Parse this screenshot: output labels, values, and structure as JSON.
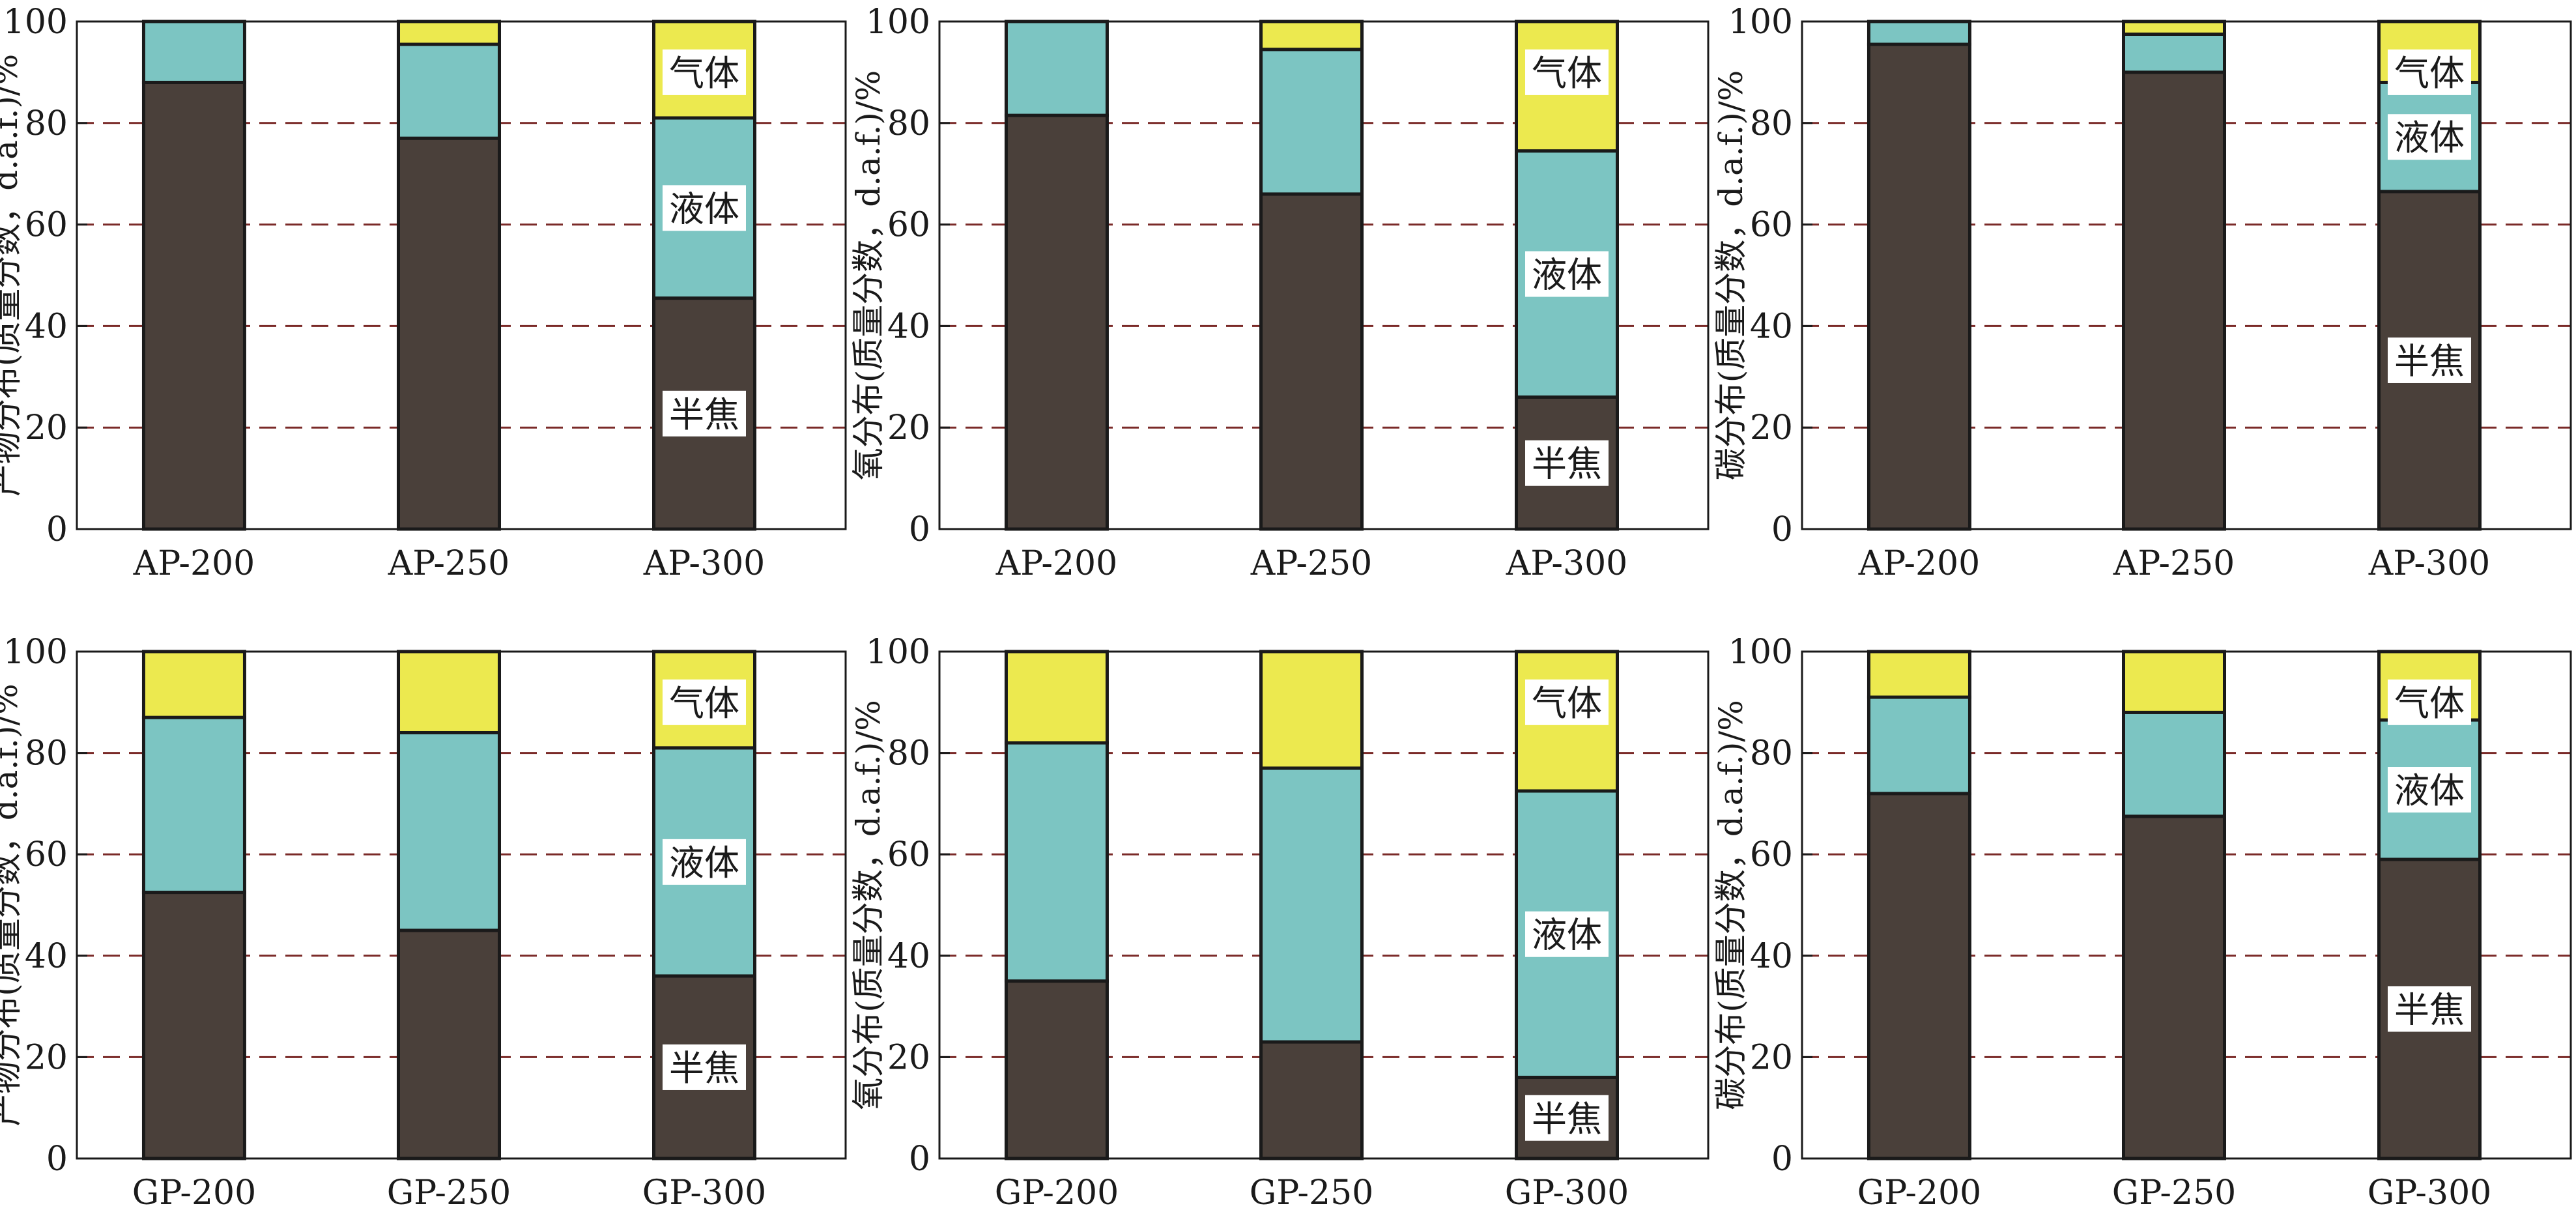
{
  "colors": {
    "semicoke": "#4a403a",
    "liquid": "#7cc5c2",
    "gas": "#ece94f",
    "gridline": "#7a2a28",
    "axis": "#1a1a1a",
    "label_bg": "#ffffff"
  },
  "chart_data": [
    {
      "id": "ap-product",
      "type": "bar",
      "stacked": true,
      "ylabel": "产物分布(质量分数，d.a.f.)/%",
      "ylim": [
        0,
        100
      ],
      "yticks": [
        "0",
        "20",
        "40",
        "60",
        "80",
        "100"
      ],
      "grid": "dashed horizontal at 20, 40, 60, 80",
      "categories": [
        "AP-200",
        "AP-250",
        "AP-300"
      ],
      "series": [
        {
          "name": "半焦",
          "color_key": "semicoke",
          "values": [
            88,
            77,
            45.5
          ]
        },
        {
          "name": "液体",
          "color_key": "liquid",
          "values": [
            12,
            18.5,
            35.5
          ]
        },
        {
          "name": "气体",
          "color_key": "gas",
          "values": [
            0,
            4.5,
            19
          ]
        }
      ]
    },
    {
      "id": "ap-oxygen",
      "type": "bar",
      "stacked": true,
      "ylabel": "氧分布(质量分数，d.a.f.)/%",
      "ylim": [
        0,
        100
      ],
      "yticks": [
        "0",
        "20",
        "40",
        "60",
        "80",
        "100"
      ],
      "grid": "dashed horizontal at 20, 40, 60, 80",
      "categories": [
        "AP-200",
        "AP-250",
        "AP-300"
      ],
      "series": [
        {
          "name": "半焦",
          "color_key": "semicoke",
          "values": [
            81.5,
            66,
            26
          ]
        },
        {
          "name": "液体",
          "color_key": "liquid",
          "values": [
            18.5,
            28.5,
            48.5
          ]
        },
        {
          "name": "气体",
          "color_key": "gas",
          "values": [
            0,
            5.5,
            25.5
          ]
        }
      ]
    },
    {
      "id": "ap-carbon",
      "type": "bar",
      "stacked": true,
      "ylabel": "碳分布(质量分数，d.a.f.)/%",
      "ylim": [
        0,
        100
      ],
      "yticks": [
        "0",
        "20",
        "40",
        "60",
        "80",
        "100"
      ],
      "grid": "dashed horizontal at 20, 40, 60, 80",
      "categories": [
        "AP-200",
        "AP-250",
        "AP-300"
      ],
      "series": [
        {
          "name": "半焦",
          "color_key": "semicoke",
          "values": [
            95.5,
            90,
            66.5
          ]
        },
        {
          "name": "液体",
          "color_key": "liquid",
          "values": [
            4.5,
            7.5,
            21.5
          ]
        },
        {
          "name": "气体",
          "color_key": "gas",
          "values": [
            0,
            2.5,
            12
          ]
        }
      ]
    },
    {
      "id": "gp-product",
      "type": "bar",
      "stacked": true,
      "ylabel": "产物分布(质量分数，d.a.f.)/%",
      "ylim": [
        0,
        100
      ],
      "yticks": [
        "0",
        "20",
        "40",
        "60",
        "80",
        "100"
      ],
      "grid": "dashed horizontal at 20, 40, 60, 80",
      "categories": [
        "GP-200",
        "GP-250",
        "GP-300"
      ],
      "series": [
        {
          "name": "半焦",
          "color_key": "semicoke",
          "values": [
            52.5,
            45,
            36
          ]
        },
        {
          "name": "液体",
          "color_key": "liquid",
          "values": [
            34.5,
            39,
            45
          ]
        },
        {
          "name": "气体",
          "color_key": "gas",
          "values": [
            13,
            16,
            19
          ]
        }
      ]
    },
    {
      "id": "gp-oxygen",
      "type": "bar",
      "stacked": true,
      "ylabel": "氧分布(质量分数，d.a.f.)/%",
      "ylim": [
        0,
        100
      ],
      "yticks": [
        "0",
        "20",
        "40",
        "60",
        "80",
        "100"
      ],
      "grid": "dashed horizontal at 20, 40, 60, 80",
      "categories": [
        "GP-200",
        "GP-250",
        "GP-300"
      ],
      "series": [
        {
          "name": "半焦",
          "color_key": "semicoke",
          "values": [
            35,
            23,
            16
          ]
        },
        {
          "name": "液体",
          "color_key": "liquid",
          "values": [
            47,
            54,
            56.5
          ]
        },
        {
          "name": "气体",
          "color_key": "gas",
          "values": [
            18,
            23,
            27.5
          ]
        }
      ]
    },
    {
      "id": "gp-carbon",
      "type": "bar",
      "stacked": true,
      "ylabel": "碳分布(质量分数，d.a.f.)/%",
      "ylim": [
        0,
        100
      ],
      "yticks": [
        "0",
        "20",
        "40",
        "60",
        "80",
        "100"
      ],
      "grid": "dashed horizontal at 20, 40, 60, 80",
      "categories": [
        "GP-200",
        "GP-250",
        "GP-300"
      ],
      "series": [
        {
          "name": "半焦",
          "color_key": "semicoke",
          "values": [
            72,
            67.5,
            59
          ]
        },
        {
          "name": "液体",
          "color_key": "liquid",
          "values": [
            19,
            20.5,
            27.5
          ]
        },
        {
          "name": "气体",
          "color_key": "gas",
          "values": [
            9,
            12,
            13.5
          ]
        }
      ]
    }
  ]
}
